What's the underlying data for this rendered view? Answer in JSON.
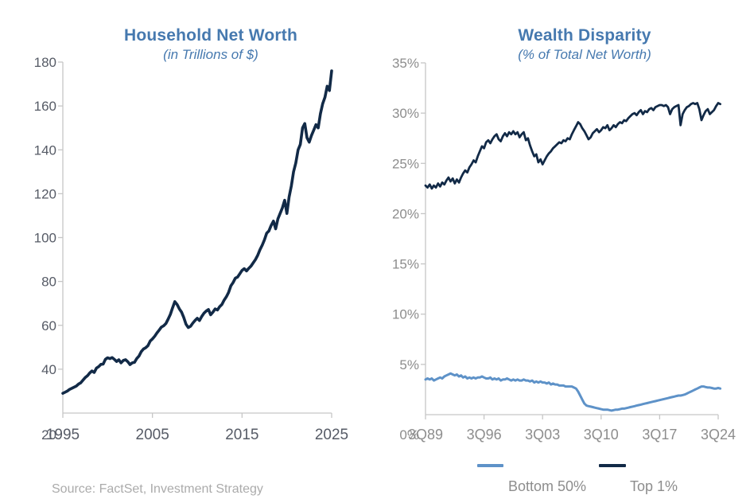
{
  "source_note": "Source: FactSet, Investment Strategy",
  "colors": {
    "title_blue": "#4679AF",
    "navy_line": "#122A47",
    "light_blue_line": "#5E92C8",
    "axis_gray": "#C6C6C6",
    "left_label_gray": "#565B66",
    "right_label_gray": "#8D8D8D",
    "source_gray": "#ABABAB"
  },
  "legend": {
    "items": [
      {
        "label": "Bottom 50%",
        "color": "#5E92C8"
      },
      {
        "label": "Top 1%",
        "color": "#122A47"
      }
    ]
  },
  "chart_data": [
    {
      "type": "line",
      "title": "Household Net Worth",
      "subtitle": "(in Trillions of $)",
      "x_range": [
        1995,
        2025
      ],
      "y_range": [
        20,
        180
      ],
      "grid": false,
      "legend_position": "none",
      "y_ticks": [
        {
          "v": 180,
          "label": "180"
        },
        {
          "v": 160,
          "label": "160"
        },
        {
          "v": 140,
          "label": "140"
        },
        {
          "v": 120,
          "label": "120"
        },
        {
          "v": 100,
          "label": "100"
        },
        {
          "v": 80,
          "label": "80"
        },
        {
          "v": 60,
          "label": "60"
        },
        {
          "v": 40,
          "label": "40"
        }
      ],
      "y_bottom_label": "20",
      "x_ticks": [
        {
          "v": 1995,
          "label": "1995"
        },
        {
          "v": 2005,
          "label": "2005"
        },
        {
          "v": 2015,
          "label": "2015"
        },
        {
          "v": 2025,
          "label": "2025"
        }
      ],
      "series": [
        {
          "name": "Household Net Worth",
          "color": "#122A47",
          "width": 3.6,
          "x_start": 1995.0,
          "x_step": 0.25,
          "values": [
            29.0,
            29.5,
            30.0,
            30.8,
            31.3,
            31.8,
            32.3,
            33.2,
            33.8,
            35.0,
            36.2,
            37.0,
            38.3,
            39.2,
            38.5,
            40.5,
            41.2,
            42.2,
            42.3,
            44.5,
            45.2,
            44.8,
            45.3,
            44.5,
            43.5,
            44.3,
            42.9,
            44.0,
            44.3,
            43.4,
            42.1,
            42.9,
            43.1,
            44.8,
            46.0,
            48.0,
            49.2,
            49.8,
            50.7,
            52.8,
            53.8,
            55.0,
            56.5,
            57.8,
            59.2,
            59.8,
            60.8,
            62.8,
            65.0,
            68.0,
            70.8,
            69.5,
            67.5,
            66.0,
            63.5,
            60.5,
            59.0,
            59.6,
            61.0,
            62.2,
            63.2,
            62.2,
            64.0,
            65.5,
            66.5,
            67.2,
            64.8,
            66.0,
            67.5,
            67.0,
            68.5,
            69.5,
            71.5,
            73.0,
            75.0,
            78.0,
            79.5,
            81.5,
            82.0,
            83.5,
            85.0,
            85.8,
            84.8,
            86.0,
            87.0,
            88.5,
            90.0,
            92.0,
            94.5,
            96.5,
            99.0,
            102.0,
            103.0,
            105.5,
            107.5,
            104.0,
            108.5,
            111.0,
            113.5,
            117.0,
            111.0,
            118.5,
            123.5,
            130.0,
            134.0,
            140.0,
            142.5,
            150.0,
            152.0,
            145.5,
            143.5,
            146.5,
            149.0,
            151.5,
            150.0,
            156.5,
            161.0,
            164.0,
            169.0,
            167.0,
            176.0
          ]
        }
      ]
    },
    {
      "type": "line",
      "title": "Wealth Disparity",
      "subtitle": "(% of Total Net Worth)",
      "x_range": [
        1989.75,
        2024.75
      ],
      "y_range": [
        0,
        35
      ],
      "grid": false,
      "legend_position": "bottom",
      "y_ticks": [
        {
          "v": 35,
          "label": "35%"
        },
        {
          "v": 30,
          "label": "30%"
        },
        {
          "v": 25,
          "label": "25%"
        },
        {
          "v": 20,
          "label": "20%"
        },
        {
          "v": 15,
          "label": "15%"
        },
        {
          "v": 10,
          "label": "10%"
        },
        {
          "v": 5,
          "label": "5%"
        }
      ],
      "y_bottom_label": "0%",
      "x_ticks": [
        {
          "v": 1989.75,
          "label": "3Q89"
        },
        {
          "v": 1996.75,
          "label": "3Q96"
        },
        {
          "v": 2003.75,
          "label": "3Q03"
        },
        {
          "v": 2010.75,
          "label": "3Q10"
        },
        {
          "v": 2017.75,
          "label": "3Q17"
        },
        {
          "v": 2024.75,
          "label": "3Q24"
        }
      ],
      "series": [
        {
          "name": "Bottom 50%",
          "color": "#5E92C8",
          "width": 3.0,
          "x_start": 1989.75,
          "x_step": 0.25,
          "values": [
            3.5,
            3.6,
            3.5,
            3.6,
            3.4,
            3.5,
            3.6,
            3.7,
            3.6,
            3.8,
            3.9,
            4.0,
            4.1,
            4.0,
            3.9,
            4.0,
            3.8,
            3.9,
            3.7,
            3.8,
            3.6,
            3.7,
            3.6,
            3.7,
            3.6,
            3.7,
            3.7,
            3.8,
            3.7,
            3.6,
            3.6,
            3.7,
            3.5,
            3.6,
            3.5,
            3.6,
            3.4,
            3.5,
            3.5,
            3.6,
            3.5,
            3.4,
            3.5,
            3.4,
            3.5,
            3.4,
            3.4,
            3.5,
            3.4,
            3.4,
            3.3,
            3.4,
            3.2,
            3.3,
            3.2,
            3.3,
            3.2,
            3.2,
            3.1,
            3.2,
            3.0,
            3.1,
            3.0,
            3.0,
            2.9,
            2.9,
            2.9,
            2.8,
            2.8,
            2.8,
            2.8,
            2.7,
            2.6,
            2.3,
            1.9,
            1.5,
            1.1,
            0.9,
            0.85,
            0.8,
            0.75,
            0.7,
            0.65,
            0.6,
            0.55,
            0.5,
            0.5,
            0.5,
            0.45,
            0.4,
            0.45,
            0.5,
            0.5,
            0.55,
            0.6,
            0.6,
            0.65,
            0.7,
            0.75,
            0.8,
            0.85,
            0.9,
            0.95,
            1.0,
            1.05,
            1.1,
            1.15,
            1.2,
            1.25,
            1.3,
            1.35,
            1.4,
            1.45,
            1.5,
            1.55,
            1.6,
            1.65,
            1.7,
            1.75,
            1.8,
            1.85,
            1.9,
            1.9,
            1.95,
            2.0,
            2.1,
            2.2,
            2.3,
            2.4,
            2.5,
            2.6,
            2.7,
            2.8,
            2.8,
            2.75,
            2.7,
            2.7,
            2.65,
            2.6,
            2.6,
            2.65,
            2.6
          ]
        },
        {
          "name": "Top 1%",
          "color": "#122A47",
          "width": 2.8,
          "x_start": 1989.75,
          "x_step": 0.25,
          "values": [
            22.8,
            22.6,
            22.9,
            22.5,
            22.8,
            22.6,
            23.0,
            22.7,
            23.1,
            22.9,
            23.3,
            23.6,
            23.2,
            23.5,
            23.0,
            23.4,
            23.1,
            23.6,
            24.0,
            24.3,
            24.1,
            24.6,
            24.9,
            25.3,
            25.1,
            25.7,
            26.2,
            26.7,
            26.5,
            27.1,
            27.3,
            27.0,
            27.4,
            27.7,
            27.9,
            27.4,
            27.2,
            27.7,
            28.0,
            27.7,
            28.1,
            27.9,
            28.2,
            27.9,
            28.1,
            27.6,
            27.9,
            28.1,
            27.3,
            27.5,
            26.8,
            26.2,
            25.7,
            25.9,
            25.1,
            25.4,
            24.9,
            25.3,
            25.7,
            26.0,
            26.2,
            26.5,
            26.7,
            26.9,
            27.1,
            27.0,
            27.3,
            27.2,
            27.5,
            27.4,
            27.9,
            28.3,
            28.7,
            29.1,
            28.9,
            28.5,
            28.2,
            27.8,
            27.4,
            27.6,
            28.0,
            28.2,
            28.4,
            28.1,
            28.3,
            28.6,
            28.5,
            28.8,
            28.3,
            28.5,
            28.8,
            28.6,
            28.9,
            29.1,
            29.0,
            29.3,
            29.2,
            29.5,
            29.7,
            29.9,
            30.0,
            29.8,
            30.1,
            30.3,
            29.9,
            30.2,
            30.1,
            30.4,
            30.5,
            30.3,
            30.6,
            30.7,
            30.8,
            30.8,
            30.7,
            30.8,
            30.6,
            29.9,
            30.4,
            30.6,
            30.7,
            30.8,
            28.8,
            29.9,
            30.3,
            30.6,
            30.7,
            30.9,
            31.0,
            30.9,
            31.0,
            30.4,
            29.3,
            29.8,
            30.2,
            30.4,
            29.9,
            30.1,
            30.3,
            30.7,
            31.0,
            30.9
          ]
        }
      ]
    }
  ]
}
